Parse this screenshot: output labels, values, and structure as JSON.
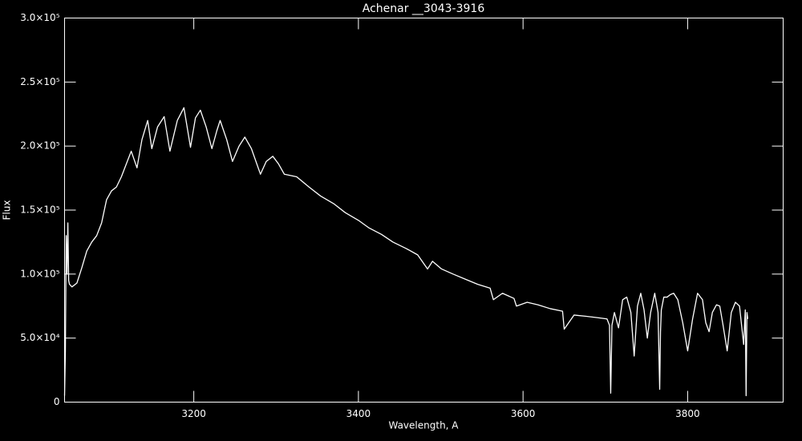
{
  "chart_data": {
    "type": "line",
    "title": "Achenar __3043-3916",
    "x_label": "Wavelength, A",
    "y_label": "Flux",
    "xlim": [
      3043,
      3916
    ],
    "ylim": [
      0,
      300000
    ],
    "xticks": [
      3200,
      3400,
      3600,
      3800
    ],
    "yticks": [
      0,
      {
        "value": 50000,
        "label": "5.0×10⁴"
      },
      {
        "value": 100000,
        "label": "1.0×10⁵"
      },
      {
        "value": 150000,
        "label": "1.5×10⁵"
      },
      {
        "value": 200000,
        "label": "2.0×10⁵"
      },
      {
        "value": 250000,
        "label": "2.5×10⁵"
      },
      {
        "value": 300000,
        "label": "3.0×10⁵"
      }
    ],
    "series": [
      {
        "name": "Achenar",
        "color": "#ffffff",
        "x": [
          3043,
          3044,
          3045,
          3046,
          3047,
          3048,
          3049,
          3052,
          3058,
          3064,
          3070,
          3076,
          3082,
          3088,
          3094,
          3100,
          3106,
          3112,
          3118,
          3124,
          3131,
          3137,
          3144,
          3149,
          3156,
          3164,
          3171,
          3180,
          3188,
          3196,
          3202,
          3208,
          3215,
          3222,
          3228,
          3232,
          3240,
          3247,
          3255,
          3262,
          3270,
          3281,
          3288,
          3296,
          3303,
          3310,
          3325,
          3340,
          3354,
          3370,
          3384,
          3400,
          3413,
          3428,
          3442,
          3458,
          3472,
          3484,
          3490,
          3501,
          3515,
          3530,
          3545,
          3560,
          3564,
          3575,
          3589,
          3592,
          3605,
          3618,
          3633,
          3648,
          3650,
          3662,
          3677,
          3690,
          3702,
          3705,
          3706.5,
          3708,
          3711,
          3716,
          3721,
          3726,
          3731,
          3735,
          3739,
          3743,
          3747,
          3751,
          3755,
          3760,
          3764,
          3766,
          3767,
          3768,
          3771,
          3775,
          3779,
          3783,
          3788,
          3794,
          3800,
          3806,
          3812,
          3818,
          3822,
          3826,
          3830,
          3835,
          3839,
          3843,
          3848,
          3853,
          3858,
          3863,
          3868,
          3870,
          3871,
          3872,
          3873
        ],
        "values": [
          5000,
          40000,
          130000,
          100000,
          140000,
          95000,
          92000,
          90000,
          93000,
          105000,
          118000,
          125000,
          130000,
          140000,
          158000,
          165000,
          168000,
          176000,
          186000,
          196000,
          183000,
          205000,
          220000,
          198000,
          215000,
          223000,
          196000,
          220000,
          230000,
          199000,
          222000,
          228000,
          215000,
          198000,
          212000,
          220000,
          205000,
          188000,
          200000,
          207000,
          198000,
          178000,
          188000,
          192000,
          186000,
          178000,
          176000,
          168000,
          161000,
          155000,
          148000,
          142000,
          136000,
          131000,
          125000,
          120000,
          115000,
          104000,
          110000,
          104000,
          100000,
          96000,
          92000,
          89000,
          80000,
          85000,
          81000,
          75000,
          78000,
          76000,
          73000,
          71000,
          57000,
          68000,
          67000,
          66000,
          65000,
          60000,
          7000,
          60000,
          70000,
          58000,
          80000,
          82000,
          70000,
          36000,
          75000,
          85000,
          72000,
          50000,
          70000,
          85000,
          70000,
          10000,
          55000,
          72000,
          82000,
          82000,
          84000,
          85000,
          80000,
          62000,
          40000,
          65000,
          85000,
          80000,
          62000,
          55000,
          70000,
          76000,
          75000,
          60000,
          40000,
          70000,
          78000,
          75000,
          45000,
          72000,
          5000,
          70000,
          65000
        ]
      }
    ]
  }
}
